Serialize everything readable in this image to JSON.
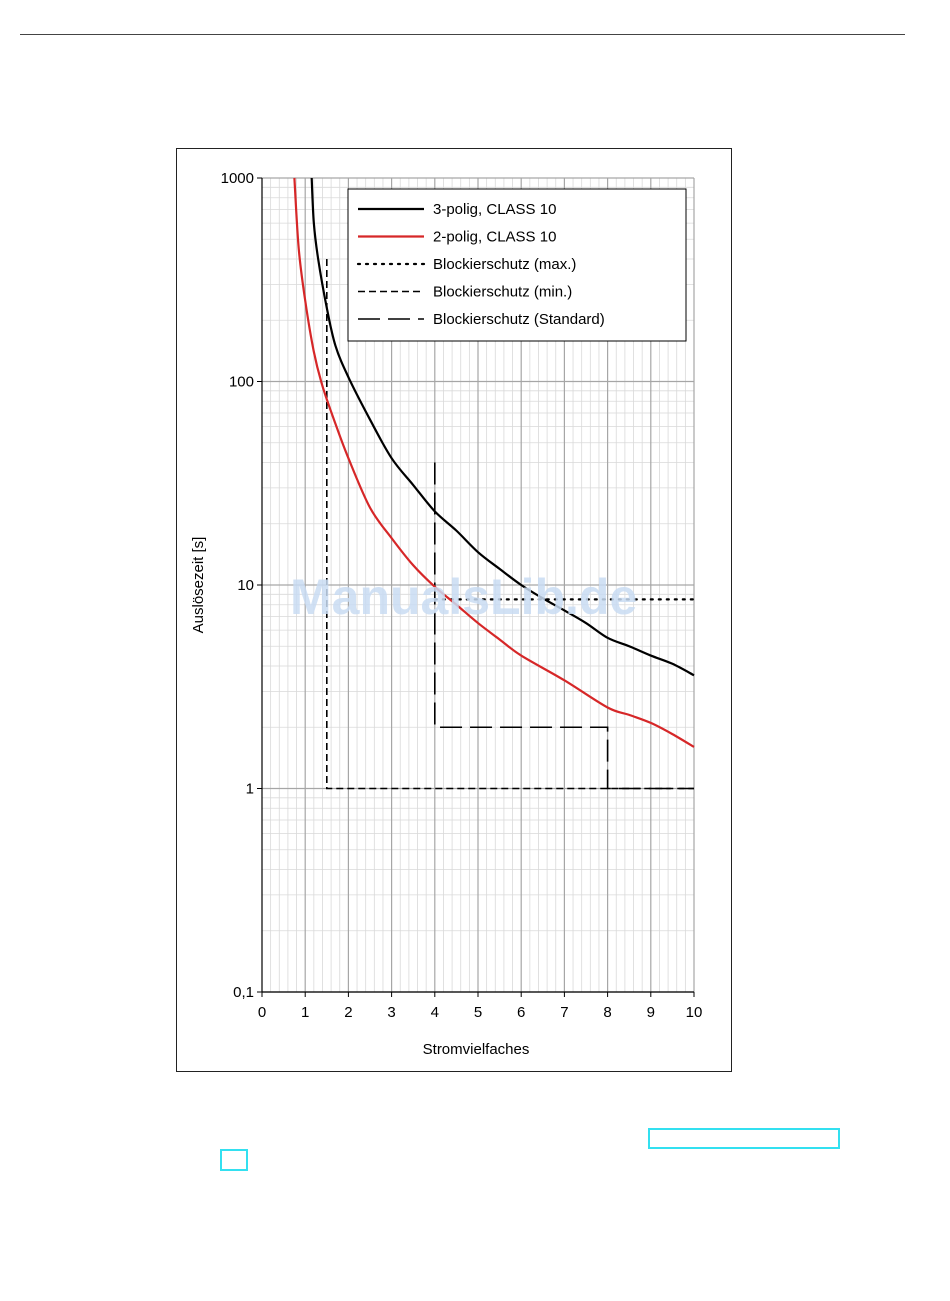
{
  "chart_data": {
    "type": "line",
    "xlabel": "Stromvielfaches",
    "ylabel": "Auslösezeit [s]",
    "xlim": [
      0,
      10
    ],
    "ylim": [
      0.1,
      1000
    ],
    "yscale": "log",
    "grid": true,
    "legend_position": "top-right",
    "x_tick_labels": [
      "0",
      "1",
      "2",
      "3",
      "4",
      "5",
      "6",
      "7",
      "8",
      "9",
      "10"
    ],
    "y_ticks": [
      {
        "value": 1000,
        "label": "1000"
      },
      {
        "value": 100,
        "label": "100"
      },
      {
        "value": 10,
        "label": "10"
      },
      {
        "value": 1,
        "label": "1"
      },
      {
        "value": 0.1,
        "label": "0,1"
      }
    ],
    "series": [
      {
        "name": "3-polig, CLASS 10",
        "style": "solid",
        "color": "#000000",
        "x": [
          1.15,
          1.2,
          1.3,
          1.5,
          1.7,
          2.0,
          2.5,
          3.0,
          3.5,
          4.0,
          4.5,
          5.0,
          5.5,
          6.0,
          6.5,
          7.0,
          7.5,
          8.0,
          8.5,
          9.0,
          9.5,
          10.0
        ],
        "y": [
          1000,
          600,
          400,
          230,
          150,
          105,
          65,
          42,
          31,
          23,
          18.5,
          14.5,
          12,
          10,
          8.6,
          7.5,
          6.5,
          5.5,
          5,
          4.5,
          4.1,
          3.6
        ]
      },
      {
        "name": "2-polig, CLASS 10",
        "style": "solid",
        "color": "#d62728",
        "x": [
          0.75,
          0.85,
          1.0,
          1.2,
          1.4,
          1.7,
          2.0,
          2.5,
          3.0,
          3.5,
          4.0,
          4.5,
          5.0,
          5.5,
          6.0,
          7.0,
          8.0,
          8.5,
          9.0,
          9.5,
          10.0
        ],
        "y": [
          1000,
          450,
          250,
          140,
          95,
          62,
          42,
          24,
          17,
          12.5,
          9.8,
          8,
          6.5,
          5.4,
          4.5,
          3.4,
          2.5,
          2.3,
          2.1,
          1.85,
          1.6
        ]
      },
      {
        "name": "Blockierschutz (max.)",
        "style": "dotted",
        "color": "#000000",
        "x": [
          4.0,
          10.0
        ],
        "y": [
          8.5,
          8.5
        ]
      },
      {
        "name": "Blockierschutz (min.)",
        "style": "short-dash",
        "color": "#000000",
        "x": [
          1.5,
          1.5,
          10.0
        ],
        "y": [
          400,
          1,
          1
        ]
      },
      {
        "name": "Blockierschutz (Standard)",
        "style": "long-dash",
        "color": "#000000",
        "x": [
          4.0,
          4.0,
          8.0,
          8.0,
          10.0
        ],
        "y": [
          40,
          2,
          2,
          1,
          1
        ]
      }
    ]
  },
  "watermark": {
    "text": "ManualsLib.de"
  }
}
